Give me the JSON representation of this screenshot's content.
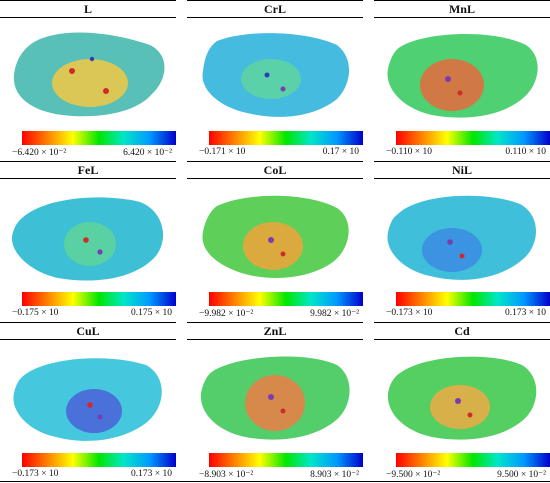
{
  "panels": [
    {
      "title": "L",
      "min_label": "−6.420 × 10⁻²",
      "max_label": "6.420 × 10⁻²",
      "surface_color": "#58c0b6",
      "core_color": "#f2c845"
    },
    {
      "title": "CrL",
      "min_label": "−0.171 × 10",
      "max_label": "0.17 × 10",
      "surface_color": "#46bbe0",
      "core_color": "#5fd5a0"
    },
    {
      "title": "MnL",
      "min_label": "−0.110 × 10",
      "max_label": "0.110 × 10",
      "surface_color": "#4fd073",
      "core_color": "#e66a3c"
    },
    {
      "title": "FeL",
      "min_label": "−0.175 × 10",
      "max_label": "0.175 × 10",
      "surface_color": "#3dbfd6",
      "core_color": "#5ed39a"
    },
    {
      "title": "CoL",
      "min_label": "−9.982 × 10⁻²",
      "max_label": "9.982 × 10⁻²",
      "surface_color": "#5ed05a",
      "core_color": "#f1a33b"
    },
    {
      "title": "NiL",
      "min_label": "−0.173 × 10",
      "max_label": "0.173 × 10",
      "surface_color": "#3fbfda",
      "core_color": "#3c8be2"
    },
    {
      "title": "CuL",
      "min_label": "−0.173 × 10",
      "max_label": "0.173 × 10",
      "surface_color": "#45c8dd",
      "core_color": "#4a61d8"
    },
    {
      "title": "ZnL",
      "min_label": "−8.903 × 10⁻²",
      "max_label": "8.903 × 10⁻²",
      "surface_color": "#53ce6a",
      "core_color": "#ef7d46"
    },
    {
      "title": "Cd",
      "min_label": "−9.500 × 10⁻²",
      "max_label": "9.500 × 10⁻²",
      "surface_color": "#55cf61",
      "core_color": "#eeaa45"
    }
  ]
}
